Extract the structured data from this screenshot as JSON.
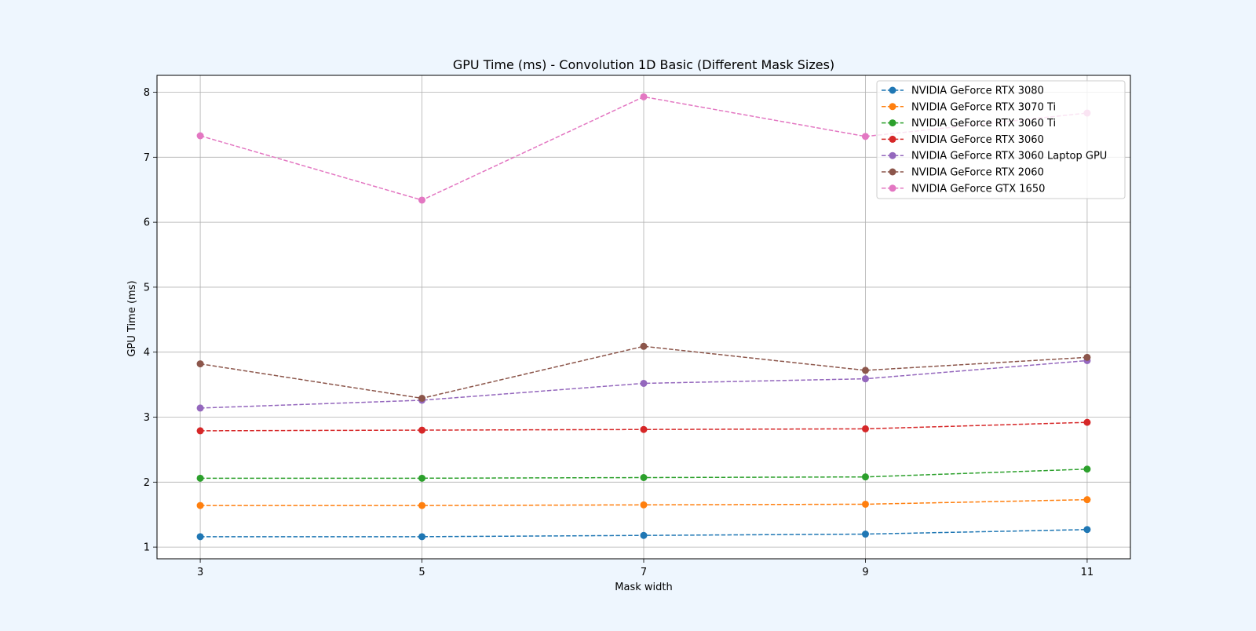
{
  "chart_data": {
    "type": "line",
    "title": "GPU Time (ms) - Convolution 1D Basic (Different Mask Sizes)",
    "xlabel": "Mask width",
    "ylabel": "GPU Time (ms)",
    "x": [
      3,
      5,
      7,
      9,
      11
    ],
    "x_ticks": [
      "3",
      "5",
      "7",
      "9",
      "11"
    ],
    "y_ticks": [
      "1",
      "2",
      "3",
      "4",
      "5",
      "6",
      "7",
      "8"
    ],
    "xlim": [
      2.61,
      11.39
    ],
    "ylim": [
      0.82,
      8.26
    ],
    "grid": true,
    "legend_position": "top-right",
    "line_style": "dashed",
    "marker": "circle",
    "series": [
      {
        "name": "NVIDIA GeForce RTX 3080",
        "color": "#1f77b4",
        "values": [
          1.16,
          1.16,
          1.18,
          1.2,
          1.27
        ]
      },
      {
        "name": "NVIDIA GeForce RTX 3070 Ti",
        "color": "#ff7f0e",
        "values": [
          1.64,
          1.64,
          1.65,
          1.66,
          1.73
        ]
      },
      {
        "name": "NVIDIA GeForce RTX 3060 Ti",
        "color": "#2ca02c",
        "values": [
          2.06,
          2.06,
          2.07,
          2.08,
          2.2
        ]
      },
      {
        "name": "NVIDIA GeForce RTX 3060",
        "color": "#d62728",
        "values": [
          2.79,
          2.8,
          2.81,
          2.82,
          2.92
        ]
      },
      {
        "name": "NVIDIA GeForce RTX 3060 Laptop GPU",
        "color": "#9467bd",
        "values": [
          3.14,
          3.26,
          3.52,
          3.59,
          3.87
        ]
      },
      {
        "name": "NVIDIA GeForce RTX 2060",
        "color": "#8c564b",
        "values": [
          3.82,
          3.29,
          4.09,
          3.72,
          3.92
        ]
      },
      {
        "name": "NVIDIA GeForce GTX 1650",
        "color": "#e377c2",
        "values": [
          7.33,
          6.34,
          7.93,
          7.32,
          7.68
        ]
      }
    ]
  }
}
